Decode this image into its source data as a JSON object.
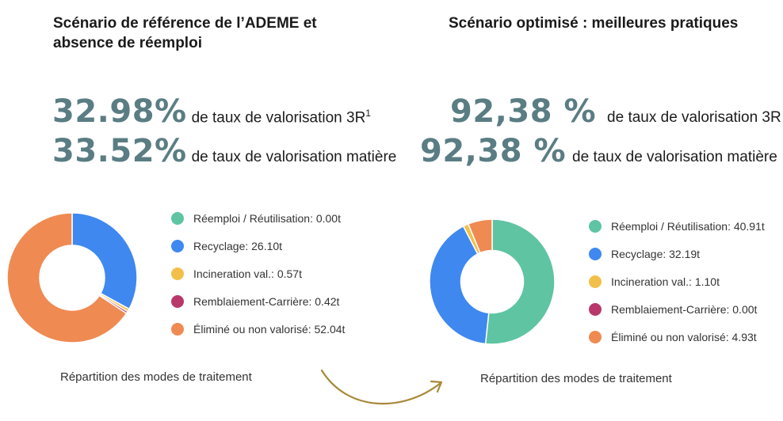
{
  "left": {
    "title": "Scénario de référence de l’ADEME et absence de réemploi",
    "stats": [
      {
        "value": "32.98%",
        "text": "de taux de valorisation 3R",
        "sup": "1"
      },
      {
        "value": "33.52%",
        "text": "de taux de valorisation matière",
        "sup": ""
      }
    ],
    "caption": "Répartition des modes de traitement"
  },
  "right": {
    "title": "Scénario optimisé : meilleures pratiques",
    "stats": [
      {
        "value": "92,38 %",
        "text": "de taux de valorisation 3R",
        "sup": ""
      },
      {
        "value": "92,38 %",
        "text": "de taux de valorisation matière",
        "sup": ""
      }
    ],
    "caption": "Répartition des modes de traitement"
  },
  "colors": {
    "reemploi": "#5ec4a2",
    "recyclage": "#3f88f0",
    "incineration": "#f2c04a",
    "remblaiement": "#b8386b",
    "elimine": "#ef8a52",
    "stat_value": "#5a7d83",
    "arrow": "#a8893a"
  },
  "chart_data": [
    {
      "type": "pie",
      "donut": true,
      "categories": [
        "Réemploi / Réutilisation",
        "Recyclage",
        "Incineration val.",
        "Remblaiement-Carrière",
        "Éliminé ou non valorisé"
      ],
      "values": [
        0.0,
        26.1,
        0.57,
        0.42,
        52.04
      ],
      "legend": [
        "Réemploi / Réutilisation: 0.00t",
        "Recyclage: 26.10t",
        "Incineration val.: 0.57t",
        "Remblaiement-Carrière: 0.42t",
        "Éliminé ou non valorisé: 52.04t"
      ],
      "colors": [
        "#5ec4a2",
        "#3f88f0",
        "#f2c04a",
        "#b8386b",
        "#ef8a52"
      ],
      "legend_position": "right"
    },
    {
      "type": "pie",
      "donut": true,
      "categories": [
        "Réemploi / Réutilisation",
        "Recyclage",
        "Incineration val.",
        "Remblaiement-Carrière",
        "Éliminé ou non valorisé"
      ],
      "values": [
        40.91,
        32.19,
        1.1,
        0.0,
        4.93
      ],
      "legend": [
        "Réemploi / Réutilisation: 40.91t",
        "Recyclage: 32.19t",
        "Incineration val.: 1.10t",
        "Remblaiement-Carrière: 0.00t",
        "Éliminé ou non valorisé: 4.93t"
      ],
      "colors": [
        "#5ec4a2",
        "#3f88f0",
        "#f2c04a",
        "#b8386b",
        "#ef8a52"
      ],
      "legend_position": "right"
    }
  ]
}
